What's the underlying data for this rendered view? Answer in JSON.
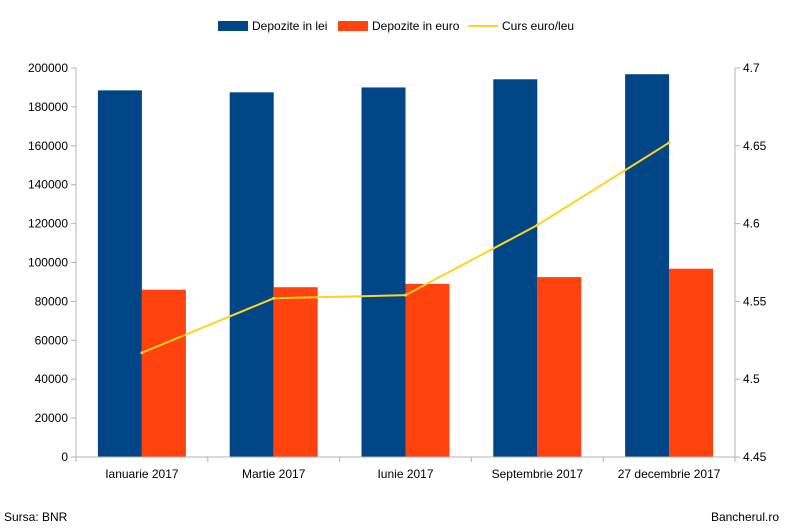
{
  "chart_data": {
    "type": "bar",
    "categories": [
      "Ianuarie 2017",
      "Martie 2017",
      "Iunie 2017",
      "Septembrie 2017",
      "27 decembrie 2017"
    ],
    "series": [
      {
        "name": "Depozite in lei",
        "type": "bar",
        "axis": "left",
        "color": "#004586",
        "values": [
          188500,
          187500,
          190000,
          194200,
          196800
        ]
      },
      {
        "name": "Depozite in euro",
        "type": "bar",
        "axis": "left",
        "color": "#ff420e",
        "values": [
          86000,
          87300,
          89000,
          92500,
          96800
        ]
      },
      {
        "name": "Curs euro/leu",
        "type": "line",
        "axis": "right",
        "color": "#ffd320",
        "values": [
          4.517,
          4.552,
          4.554,
          4.599,
          4.652
        ]
      }
    ],
    "y_left": {
      "min": 0,
      "max": 200000,
      "step": 20000,
      "ticks": [
        "0",
        "20000",
        "40000",
        "60000",
        "80000",
        "100000",
        "120000",
        "140000",
        "160000",
        "180000",
        "200000"
      ]
    },
    "y_right": {
      "min": 4.45,
      "max": 4.7,
      "step": 0.05,
      "ticks": [
        "4.45",
        "4.5",
        "4.55",
        "4.6",
        "4.65",
        "4.7"
      ]
    },
    "legend_position": "top",
    "grid": false
  },
  "footer": {
    "source": "Sursa: BNR",
    "brand": "Bancherul.ro"
  }
}
